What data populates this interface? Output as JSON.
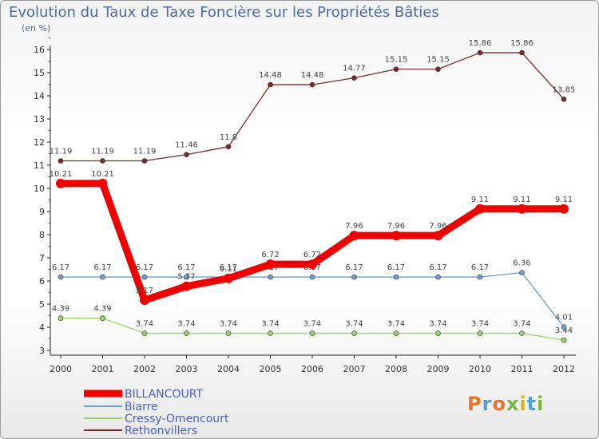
{
  "header": {
    "title": "Evolution du Taux de Taxe Foncière sur les Propriétés Bâties",
    "subtitle": "(en %)"
  },
  "logo": {
    "text": "Proxiti",
    "colors": [
      "#e8742a",
      "#4aa3d6",
      "#e8742a",
      "#7ab940",
      "#d9b21b",
      "#4aa3d6",
      "#7ab940"
    ]
  },
  "chart_data": {
    "type": "line",
    "x": [
      "2000",
      "2001",
      "2002",
      "2003",
      "2004",
      "2005",
      "2006",
      "2007",
      "2008",
      "2009",
      "2010",
      "2011",
      "2012"
    ],
    "ylim": [
      3,
      16
    ],
    "yticks": [
      "3",
      "4",
      "5",
      "6",
      "7",
      "8",
      "9",
      "10",
      "11",
      "12",
      "13",
      "14",
      "15",
      "16"
    ],
    "grid": false,
    "legend_position": "bottom-left",
    "series": [
      {
        "name": "Rethonvillers",
        "color": "#7a2a2a",
        "values": [
          11.19,
          11.19,
          11.19,
          11.46,
          11.8,
          14.48,
          14.48,
          14.77,
          15.15,
          15.15,
          15.86,
          15.86,
          13.85
        ],
        "labels": [
          "11.19",
          "11.19",
          "11.19",
          "11.46",
          "11.8",
          "14.48",
          "14.48",
          "14.77",
          "15.15",
          "15.15",
          "15.86",
          "15.86",
          "13.85"
        ]
      },
      {
        "name": "Cressy-Omencourt",
        "color": "#99d46a",
        "values": [
          4.39,
          4.39,
          3.74,
          3.74,
          3.74,
          3.74,
          3.74,
          3.74,
          3.74,
          3.74,
          3.74,
          3.74,
          3.44
        ],
        "labels": [
          "4.39",
          "4.39",
          "3.74",
          "3.74",
          "3.74",
          "3.74",
          "3.74",
          "3.74",
          "3.74",
          "3.74",
          "3.74",
          "3.74",
          "3.44"
        ]
      },
      {
        "name": "Biarre",
        "color": "#6f9fcf",
        "values": [
          6.17,
          6.17,
          6.17,
          6.17,
          6.17,
          6.17,
          6.17,
          6.17,
          6.17,
          6.17,
          6.17,
          6.36,
          4.01
        ],
        "labels": [
          "6.17",
          "6.17",
          "6.17",
          "6.17",
          "6.17",
          "6.17",
          "6.17",
          "6.17",
          "6.17",
          "6.17",
          "6.17",
          "6.36",
          "4.01"
        ]
      },
      {
        "name": "BILLANCOURT",
        "color": "#ee0000",
        "values": [
          10.21,
          10.21,
          5.17,
          5.77,
          6.11,
          6.72,
          6.72,
          7.96,
          7.96,
          7.96,
          9.11,
          9.11,
          9.11
        ],
        "labels": [
          "10.21",
          "10.21",
          "5.17",
          "5.77",
          "6.11",
          "6.72",
          "6.72",
          "7.96",
          "7.96",
          "7.96",
          "9.11",
          "9.11",
          "9.11"
        ]
      }
    ],
    "legend_order": [
      "BILLANCOURT",
      "Biarre",
      "Cressy-Omencourt",
      "Rethonvillers"
    ]
  }
}
